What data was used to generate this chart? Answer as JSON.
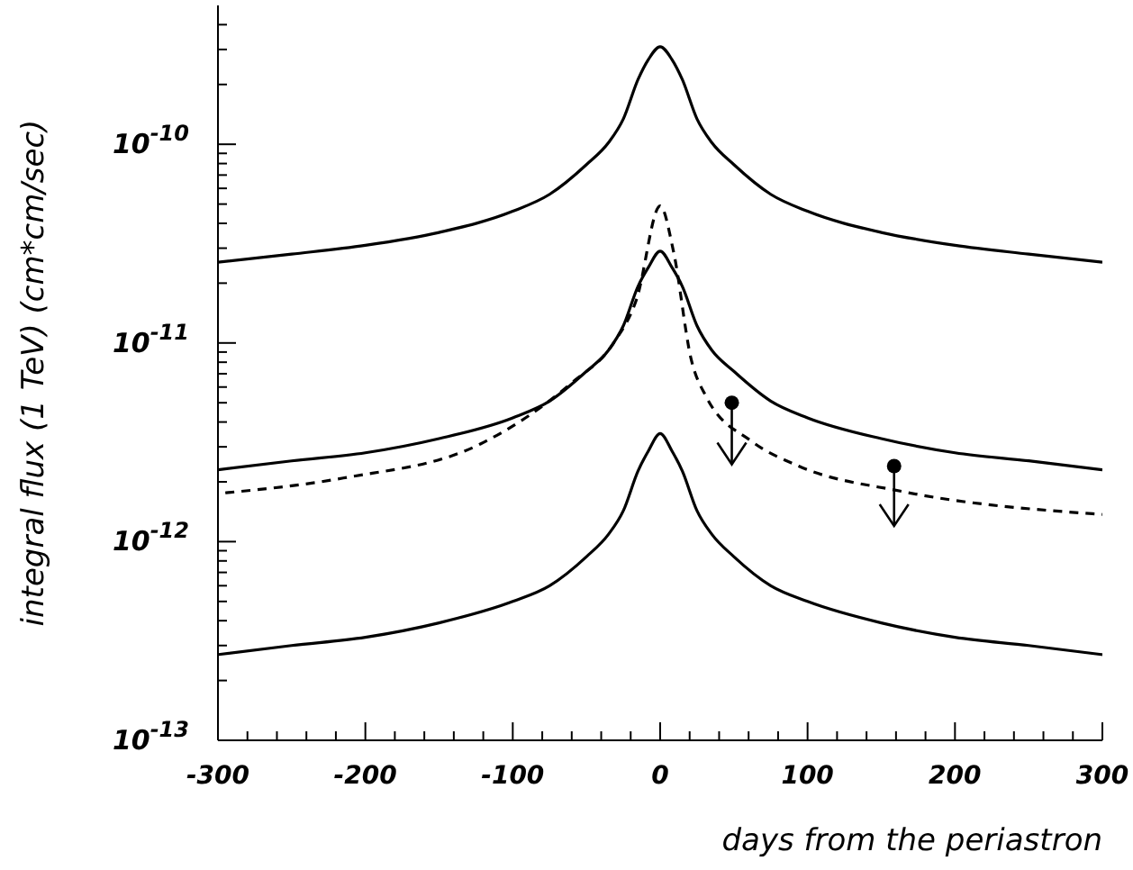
{
  "chart_data": {
    "type": "line",
    "xlabel": "days from the periastron",
    "ylabel": "integral flux (1 TeV) (cm*cm/sec)",
    "log": "y",
    "marker": "none",
    "xlim": [
      -300,
      300
    ],
    "xticks": [
      -300,
      {
        "value": -280,
        "label": null
      },
      {
        "value": -260,
        "label": null
      },
      {
        "value": -240,
        "label": null
      },
      {
        "value": -220,
        "label": null
      },
      -200,
      {
        "value": -180,
        "label": null
      },
      {
        "value": -160,
        "label": null
      },
      {
        "value": -140,
        "label": null
      },
      {
        "value": -120,
        "label": null
      },
      -100,
      {
        "value": -80,
        "label": null
      },
      {
        "value": -60,
        "label": null
      },
      {
        "value": -40,
        "label": null
      },
      {
        "value": -20,
        "label": null
      },
      0,
      {
        "value": 20,
        "label": null
      },
      {
        "value": 40,
        "label": null
      },
      {
        "value": 60,
        "label": null
      },
      {
        "value": 80,
        "label": null
      },
      100,
      {
        "value": 120,
        "label": null
      },
      {
        "value": 140,
        "label": null
      },
      {
        "value": 160,
        "label": null
      },
      {
        "value": 180,
        "label": null
      },
      200,
      {
        "value": 220,
        "label": null
      },
      {
        "value": 240,
        "label": null
      },
      {
        "value": 260,
        "label": null
      },
      {
        "value": 280,
        "label": null
      },
      300
    ],
    "ylim": [
      1e-13,
      5e-10
    ],
    "yticks": [
      {
        "value": 1e-13,
        "label": "10$^{-13}$"
      },
      {
        "value": 2e-13,
        "label": null
      },
      {
        "value": 3e-13,
        "label": null
      },
      {
        "value": 4e-13,
        "label": null
      },
      {
        "value": 5e-13,
        "label": null
      },
      {
        "value": 6e-13,
        "label": null
      },
      {
        "value": 7e-13,
        "label": null
      },
      {
        "value": 8e-13,
        "label": null
      },
      {
        "value": 9e-13,
        "label": null
      },
      {
        "value": 1e-12,
        "label": "10$^{-12}$"
      },
      {
        "value": 2e-12,
        "label": null
      },
      {
        "value": 3e-12,
        "label": null
      },
      {
        "value": 4e-12,
        "label": null
      },
      {
        "value": 5e-12,
        "label": null
      },
      {
        "value": 6e-12,
        "label": null
      },
      {
        "value": 7e-12,
        "label": null
      },
      {
        "value": 8e-12,
        "label": null
      },
      {
        "value": 9e-12,
        "label": null
      },
      {
        "value": 1e-11,
        "label": "10$^{-11}$"
      },
      {
        "value": 2e-11,
        "label": null
      },
      {
        "value": 3e-11,
        "label": null
      },
      {
        "value": 4e-11,
        "label": null
      },
      {
        "value": 5e-11,
        "label": null
      },
      {
        "value": 6e-11,
        "label": null
      },
      {
        "value": 7e-11,
        "label": null
      },
      {
        "value": 8e-11,
        "label": null
      },
      {
        "value": 9e-11,
        "label": null
      },
      {
        "value": 1e-10,
        "label": "10$^{-10}$"
      },
      {
        "value": 2e-10,
        "label": null
      },
      {
        "value": 3e-10,
        "label": null
      },
      {
        "value": 4e-10,
        "label": null
      }
    ],
    "series": [
      {
        "color": "#000000",
        "line_style": "solid",
        "x": [
          -300,
          -250,
          -200,
          -150,
          -100,
          -75,
          -50,
          -35,
          -25,
          -15,
          -8,
          0,
          8,
          15,
          25,
          35,
          50,
          75,
          100,
          150,
          200,
          250,
          300
        ],
        "values": [
          2.55e-11,
          2.8e-11,
          3.1e-11,
          3.6e-11,
          4.6e-11,
          5.6e-11,
          7.9e-11,
          1.02e-10,
          1.34e-10,
          2.12e-10,
          2.67e-10,
          3.1e-10,
          2.67e-10,
          2.12e-10,
          1.34e-10,
          1.02e-10,
          7.9e-11,
          5.6e-11,
          4.6e-11,
          3.6e-11,
          3.1e-11,
          2.8e-11,
          2.55e-11
        ]
      },
      {
        "color": "#000000",
        "line_style": "solid",
        "x": [
          -300,
          -250,
          -200,
          -150,
          -100,
          -75,
          -50,
          -35,
          -25,
          -15,
          -8,
          0,
          8,
          15,
          25,
          35,
          50,
          75,
          100,
          150,
          200,
          250,
          300
        ],
        "values": [
          2.3e-12,
          2.55e-12,
          2.8e-12,
          3.3e-12,
          4.2e-12,
          5.1e-12,
          7.2e-12,
          9.2e-12,
          1.22e-11,
          1.93e-11,
          2.4e-11,
          2.9e-11,
          2.4e-11,
          1.93e-11,
          1.22e-11,
          9.2e-12,
          7.2e-12,
          5.1e-12,
          4.2e-12,
          3.3e-12,
          2.8e-12,
          2.55e-12,
          2.3e-12
        ]
      },
      {
        "color": "#000000",
        "line_style": "solid",
        "x": [
          -300,
          -250,
          -200,
          -150,
          -100,
          -75,
          -50,
          -35,
          -25,
          -15,
          -8,
          0,
          8,
          15,
          25,
          35,
          50,
          75,
          100,
          150,
          200,
          250,
          300
        ],
        "values": [
          2.7e-13,
          3e-13,
          3.3e-13,
          3.9e-13,
          5e-13,
          6e-13,
          8.4e-13,
          1.09e-12,
          1.43e-12,
          2.27e-12,
          2.86e-12,
          3.5e-12,
          2.86e-12,
          2.27e-12,
          1.43e-12,
          1.09e-12,
          8.4e-13,
          6e-13,
          5e-13,
          3.9e-13,
          3.3e-13,
          3e-13,
          2.7e-13
        ]
      },
      {
        "color": "#000000",
        "line_style": "dashed",
        "x": [
          -295,
          -215,
          -122,
          -60,
          -32,
          -16,
          0,
          9,
          21,
          31,
          62,
          94,
          164,
          300
        ],
        "values": [
          1.76e-12,
          2.09e-12,
          3.1e-12,
          6.3e-12,
          9.9e-12,
          1.66e-11,
          4.9e-11,
          2.9e-11,
          8.3e-12,
          5.4e-12,
          3.2e-12,
          2.4e-12,
          1.79e-12,
          1.37e-12
        ]
      },
      {
        "type": "scatter",
        "color": "#000000",
        "marker": "circle",
        "x": [
          48.6,
          158.7
        ],
        "values": [
          5e-12,
          2.4e-12
        ],
        "errors": [
          [
            2.45e-12,
            5e-12
          ],
          [
            1.2e-12,
            2.4e-12
          ]
        ]
      }
    ]
  }
}
